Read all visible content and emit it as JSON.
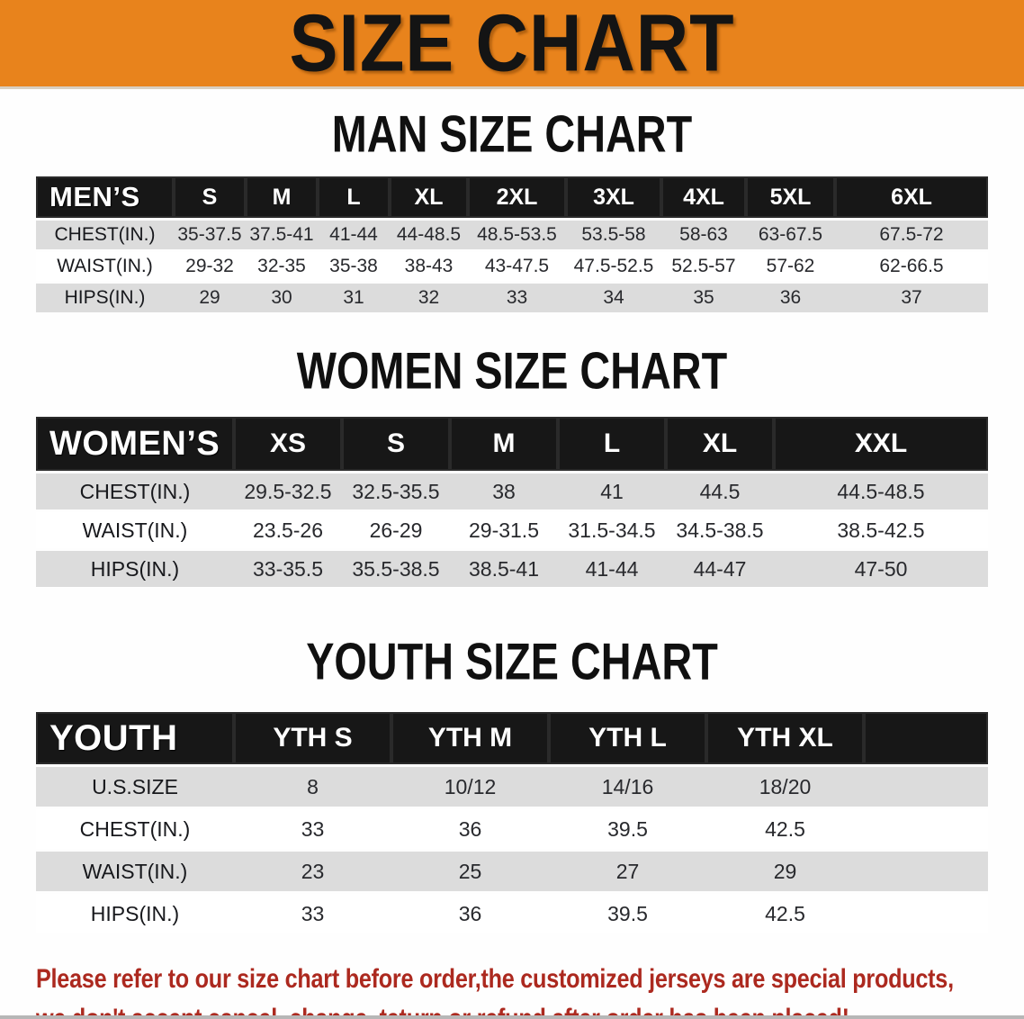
{
  "banner": {
    "title": "SIZE CHART"
  },
  "sections": [
    {
      "heading": "MAN SIZE CHART",
      "group_label": "MEN’S",
      "sizes": [
        "S",
        "M",
        "L",
        "XL",
        "2XL",
        "3XL",
        "4XL",
        "5XL",
        "6XL"
      ],
      "rows": [
        {
          "label": "CHEST(IN.)",
          "values": [
            "35-37.5",
            "37.5-41",
            "41-44",
            "44-48.5",
            "48.5-53.5",
            "53.5-58",
            "58-63",
            "63-67.5",
            "67.5-72"
          ]
        },
        {
          "label": "WAIST(IN.)",
          "values": [
            "29-32",
            "32-35",
            "35-38",
            "38-43",
            "43-47.5",
            "47.5-52.5",
            "52.5-57",
            "57-62",
            "62-66.5"
          ]
        },
        {
          "label": "HIPS(IN.)",
          "values": [
            "29",
            "30",
            "31",
            "32",
            "33",
            "34",
            "35",
            "36",
            "37"
          ]
        }
      ]
    },
    {
      "heading": "WOMEN SIZE CHART",
      "group_label": "WOMEN’S",
      "sizes": [
        "XS",
        "S",
        "M",
        "L",
        "XL",
        "XXL"
      ],
      "rows": [
        {
          "label": "CHEST(IN.)",
          "values": [
            "29.5-32.5",
            "32.5-35.5",
            "38",
            "41",
            "44.5",
            "44.5-48.5"
          ]
        },
        {
          "label": "WAIST(IN.)",
          "values": [
            "23.5-26",
            "26-29",
            "29-31.5",
            "31.5-34.5",
            "34.5-38.5",
            "38.5-42.5"
          ]
        },
        {
          "label": "HIPS(IN.)",
          "values": [
            "33-35.5",
            "35.5-38.5",
            "38.5-41",
            "41-44",
            "44-47",
            "47-50"
          ]
        }
      ]
    },
    {
      "heading": "YOUTH SIZE CHART",
      "group_label": "YOUTH",
      "sizes": [
        "YTH S",
        "YTH M",
        "YTH L",
        "YTH XL"
      ],
      "rows": [
        {
          "label": "U.S.SIZE",
          "values": [
            "8",
            "10/12",
            "14/16",
            "18/20"
          ]
        },
        {
          "label": "CHEST(IN.)",
          "values": [
            "33",
            "36",
            "39.5",
            "42.5"
          ]
        },
        {
          "label": "WAIST(IN.)",
          "values": [
            "23",
            "25",
            "27",
            "29"
          ]
        },
        {
          "label": "HIPS(IN.)",
          "values": [
            "33",
            "36",
            "39.5",
            "42.5"
          ]
        }
      ]
    }
  ],
  "footer": {
    "line1": "Please refer to our size chart before order,the customized jerseys are special products,",
    "line2": "we don't accept cancel, change, teturn or refund after order has been placed!"
  },
  "colors": {
    "banner_orange": "#E8831C",
    "header_band_black": "#171717",
    "row_gray": "#DCDCDC",
    "footer_red": "#AC291F"
  }
}
